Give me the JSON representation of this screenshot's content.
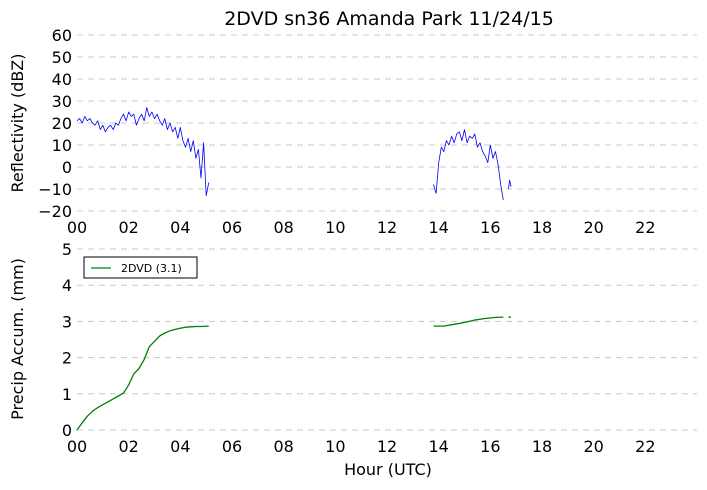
{
  "title": "2DVD sn36 Amanda Park 11/24/15",
  "chart_data": [
    {
      "type": "line",
      "title": "2DVD sn36 Amanda Park 11/24/15",
      "xlabel": "",
      "ylabel": "Reflectivity (dBZ)",
      "xlim": [
        0,
        24
      ],
      "ylim": [
        -20,
        60
      ],
      "x_ticks": [
        0,
        2,
        4,
        6,
        8,
        10,
        12,
        14,
        16,
        18,
        20,
        22
      ],
      "x_tick_labels": [
        "00",
        "02",
        "04",
        "06",
        "08",
        "10",
        "12",
        "14",
        "16",
        "18",
        "20",
        "22"
      ],
      "y_ticks": [
        60,
        50,
        40,
        30,
        20,
        10,
        0,
        -10,
        -20
      ],
      "y_tick_labels": [
        "60",
        "50",
        "40",
        "30",
        "20",
        "10",
        "0",
        "−10",
        "−20"
      ],
      "grid": "horizontal-dashed",
      "color": "#0000ff",
      "series": [
        {
          "segments": [
            {
              "x": [
                0.0,
                0.1,
                0.2,
                0.3,
                0.4,
                0.5,
                0.6,
                0.7,
                0.8,
                0.9,
                1.0,
                1.1,
                1.2,
                1.3,
                1.4,
                1.5,
                1.6,
                1.7,
                1.8,
                1.9,
                2.0,
                2.1,
                2.2,
                2.3,
                2.4,
                2.5,
                2.6,
                2.7,
                2.8,
                2.9,
                3.0,
                3.1,
                3.2,
                3.3,
                3.4,
                3.5,
                3.6,
                3.7,
                3.8,
                3.9,
                4.0,
                4.1,
                4.2,
                4.3,
                4.4,
                4.5,
                4.6,
                4.7,
                4.8,
                4.9,
                5.0,
                5.1
              ],
              "y": [
                21,
                22,
                20,
                23,
                21,
                22,
                20,
                19,
                21,
                17,
                19,
                16,
                18,
                19,
                17,
                20,
                19,
                22,
                24,
                21,
                25,
                23,
                24,
                19,
                22,
                24,
                21,
                27,
                23,
                25,
                22,
                24,
                21,
                19,
                22,
                17,
                20,
                16,
                18,
                13,
                18,
                12,
                9,
                13,
                7,
                12,
                4,
                8,
                -5,
                11,
                -13,
                -7
              ]
            },
            {
              "x": [
                13.8,
                13.9,
                14.0,
                14.1,
                14.2,
                14.3,
                14.4,
                14.5,
                14.6,
                14.7,
                14.8,
                14.9,
                15.0,
                15.1,
                15.2,
                15.3,
                15.4,
                15.5,
                15.6,
                15.7,
                15.8,
                15.9,
                16.0,
                16.1,
                16.2,
                16.3,
                16.4,
                16.5
              ],
              "y": [
                -8,
                -12,
                2,
                9,
                7,
                12,
                10,
                14,
                11,
                15,
                16,
                12,
                17,
                11,
                14,
                13,
                15,
                9,
                11,
                7,
                5,
                2,
                10,
                4,
                7,
                1,
                -8,
                -15
              ]
            },
            {
              "x": [
                16.7,
                16.75,
                16.8
              ],
              "y": [
                -10,
                -6,
                -9
              ]
            }
          ]
        }
      ]
    },
    {
      "type": "line",
      "xlabel": "Hour (UTC)",
      "ylabel": "Precip Accum. (mm)",
      "xlim": [
        0,
        24
      ],
      "ylim": [
        0,
        5
      ],
      "x_ticks": [
        0,
        2,
        4,
        6,
        8,
        10,
        12,
        14,
        16,
        18,
        20,
        22
      ],
      "x_tick_labels": [
        "00",
        "02",
        "04",
        "06",
        "08",
        "10",
        "12",
        "14",
        "16",
        "18",
        "20",
        "22"
      ],
      "y_ticks": [
        0,
        1,
        2,
        3,
        4,
        5
      ],
      "y_tick_labels": [
        "0",
        "1",
        "2",
        "3",
        "4",
        "5"
      ],
      "grid": "horizontal-dashed",
      "legend_position": "upper-left",
      "series": [
        {
          "name": "2DVD (3.1)",
          "color": "#008000",
          "segments": [
            {
              "x": [
                0.0,
                0.2,
                0.4,
                0.6,
                0.8,
                1.0,
                1.2,
                1.4,
                1.6,
                1.8,
                2.0,
                2.2,
                2.4,
                2.6,
                2.8,
                3.0,
                3.2,
                3.4,
                3.6,
                3.8,
                4.0,
                4.2,
                4.4,
                4.6,
                4.8,
                5.1
              ],
              "y": [
                0.0,
                0.2,
                0.38,
                0.52,
                0.62,
                0.7,
                0.78,
                0.86,
                0.94,
                1.02,
                1.25,
                1.55,
                1.7,
                1.95,
                2.3,
                2.45,
                2.6,
                2.68,
                2.74,
                2.78,
                2.81,
                2.84,
                2.85,
                2.86,
                2.86,
                2.87
              ]
            },
            {
              "x": [
                13.8,
                14.2,
                14.6,
                15.0,
                15.4,
                15.8,
                16.2,
                16.5
              ],
              "y": [
                2.87,
                2.87,
                2.92,
                2.97,
                3.04,
                3.08,
                3.11,
                3.12
              ]
            },
            {
              "x": [
                16.7,
                16.8
              ],
              "y": [
                3.12,
                3.12
              ]
            }
          ]
        }
      ]
    }
  ]
}
